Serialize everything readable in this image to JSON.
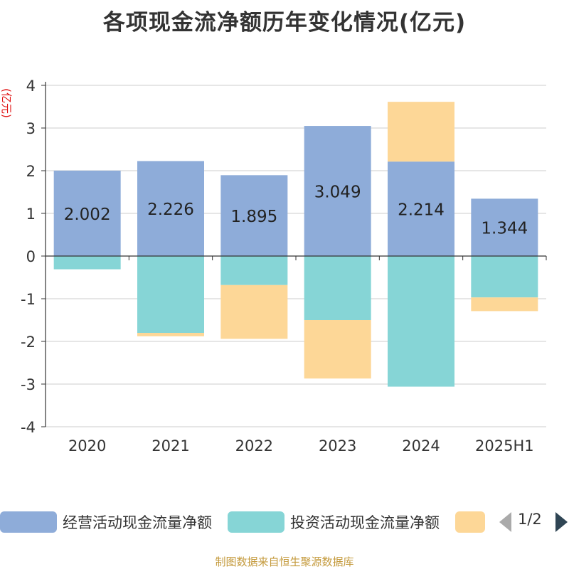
{
  "chart_data": {
    "type": "bar",
    "stacked": true,
    "title": "各项现金流净额历年变化情况(亿元)",
    "ylabel": "(亿元)",
    "ylim": [
      -4,
      4
    ],
    "yticks": [
      4,
      3,
      2,
      1,
      0,
      -1,
      -2,
      -3,
      -4
    ],
    "grid": true,
    "categories": [
      "2020",
      "2021",
      "2022",
      "2023",
      "2024",
      "2025H1"
    ],
    "series": [
      {
        "name": "经营活动现金流量净额",
        "color": "#8eacd9",
        "values": [
          2.002,
          2.226,
          1.895,
          3.049,
          2.214,
          1.344
        ],
        "show_labels": true
      },
      {
        "name": "投资活动现金流量净额",
        "color": "#86d5d6",
        "values": [
          -0.31,
          -1.8,
          -0.68,
          -1.5,
          -3.06,
          -0.97
        ],
        "show_labels": false
      },
      {
        "name": "",
        "color": "#fdd797",
        "values": [
          0,
          -0.08,
          -1.26,
          -1.37,
          1.4,
          -0.32
        ],
        "show_labels": false
      }
    ],
    "legend": {
      "placement": "bottom",
      "page_text": "1/2"
    }
  },
  "footer": {
    "source": "制图数据来自恒生聚源数据库"
  }
}
